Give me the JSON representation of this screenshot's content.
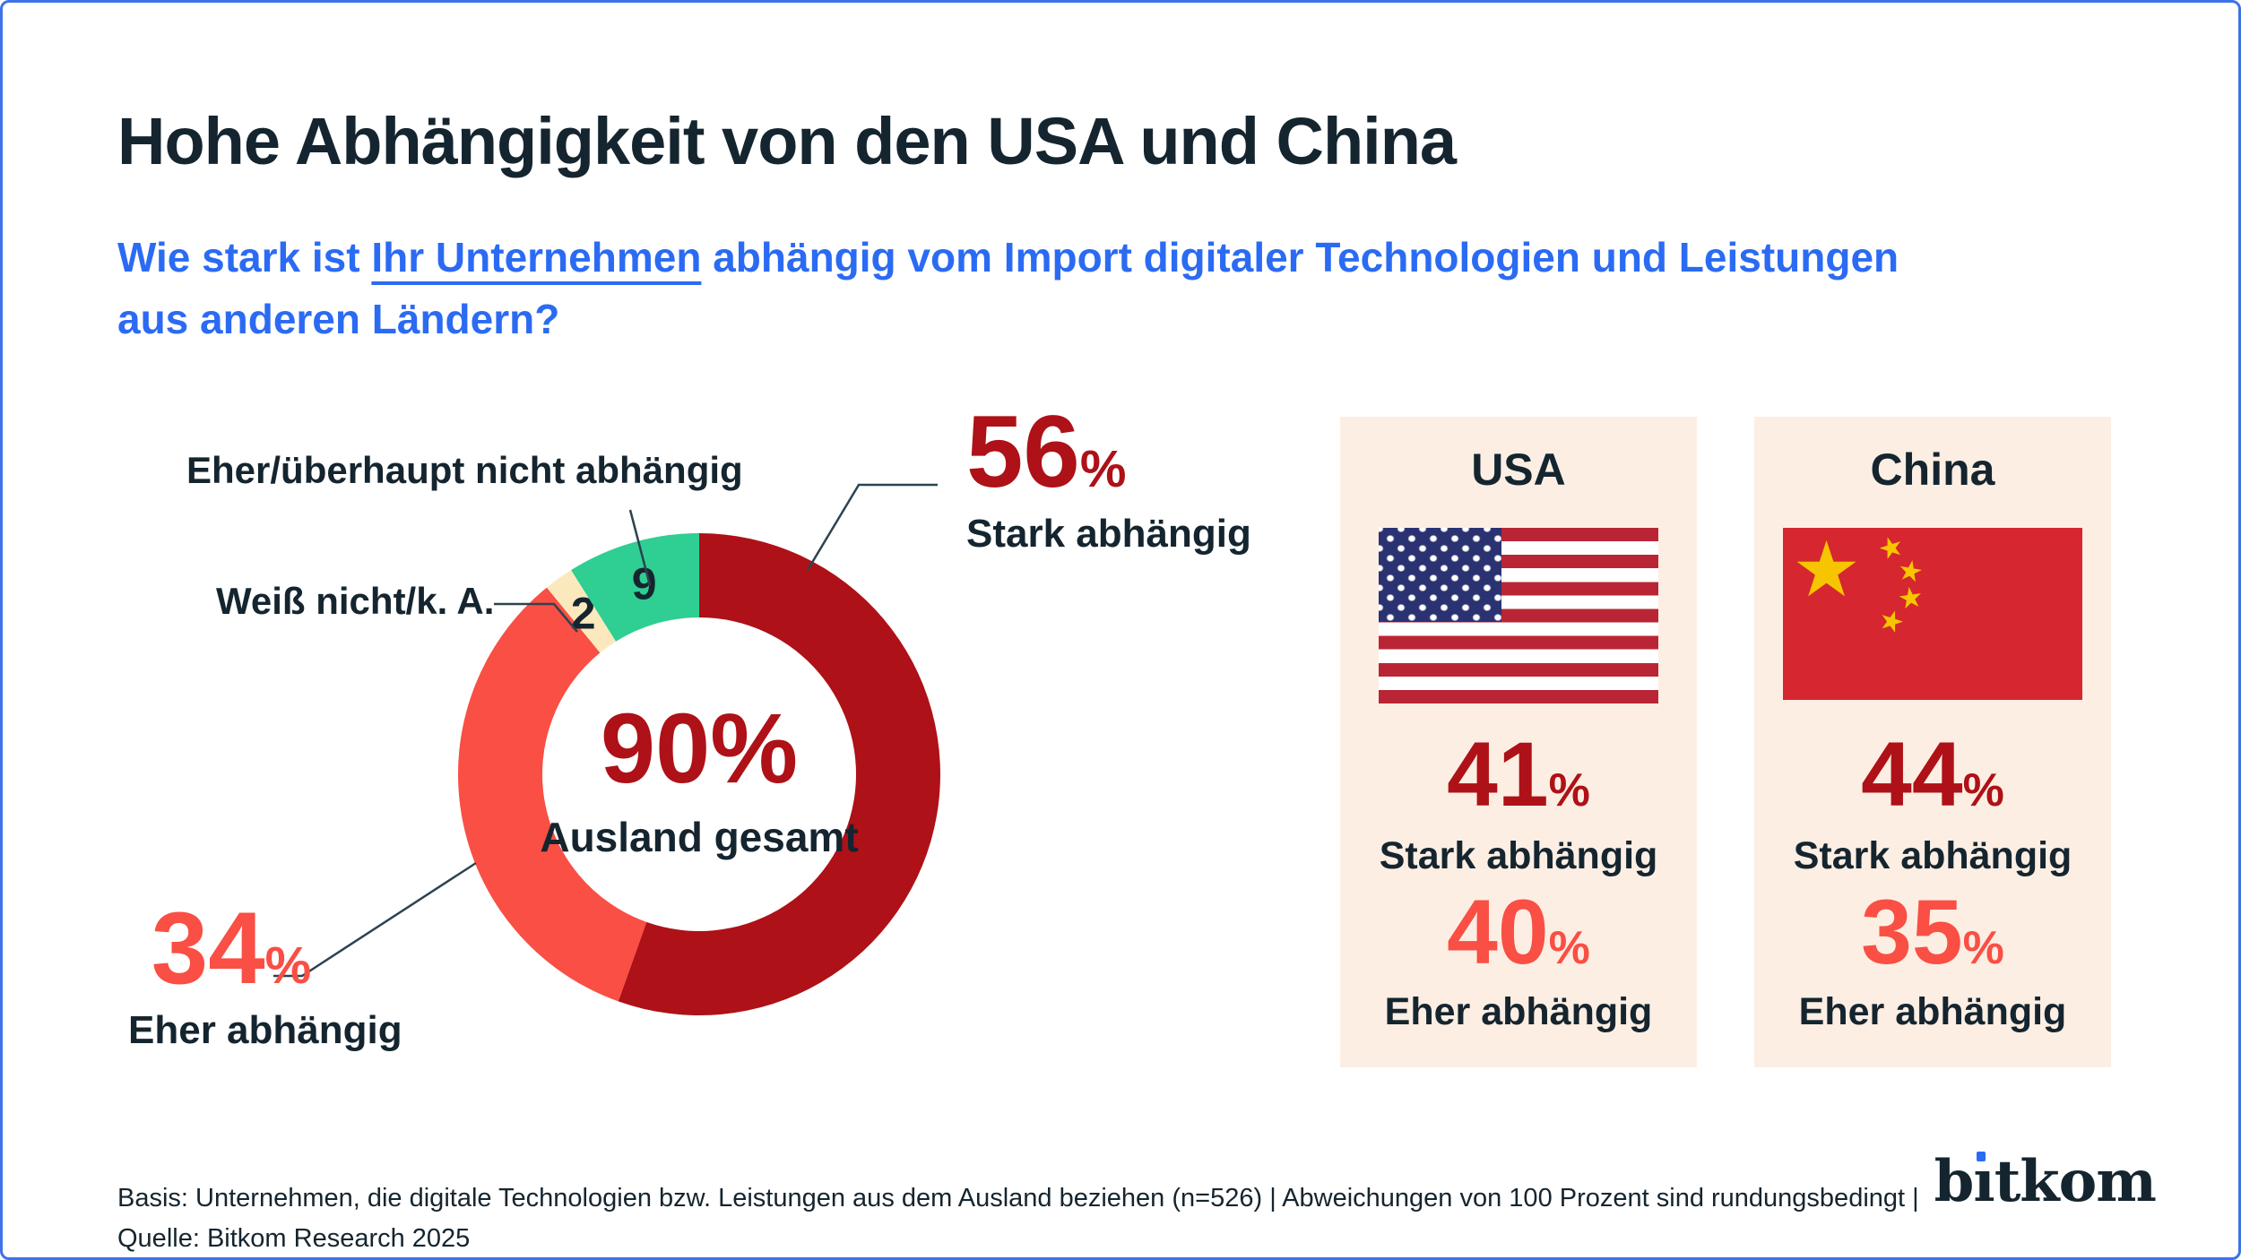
{
  "header": {
    "title": "Hohe Abhängigkeit von den USA und China",
    "subtitle": {
      "prefix": "Wie stark ist ",
      "underlined": "Ihr Unternehmen",
      "suffix": " abhängig vom Import digitaler Technologien und Leistungen",
      "line2": "aus anderen Ländern?"
    }
  },
  "chart_data": {
    "type": "pie",
    "title": "Abhängigkeit vom Import digitaler Technologien und Leistungen aus anderen Ländern",
    "legend_position": "callouts",
    "donut": {
      "center_value": "90%",
      "center_label": "Ausland gesamt",
      "start_angle_deg": 0,
      "direction": "clockwise",
      "segments": [
        {
          "label": "Stark abhängig",
          "value": 56,
          "unit": "%",
          "color": "#ae1117",
          "placement": "callout"
        },
        {
          "label": "Eher abhängig",
          "value": 34,
          "unit": "%",
          "color": "#f94f44",
          "placement": "callout"
        },
        {
          "label": "Weiß nicht/k. A.",
          "value": 2,
          "unit": "",
          "color": "#fbe9bd",
          "placement": "in-slice"
        },
        {
          "label": "Eher/überhaupt nicht abhängig",
          "value": 9,
          "unit": "",
          "color": "#2fce92",
          "placement": "in-slice"
        }
      ]
    },
    "country_breakdown": [
      {
        "name": "USA",
        "flag": "us-flag",
        "stark": {
          "value": 41,
          "unit": "%",
          "label": "Stark abhängig"
        },
        "eher": {
          "value": 40,
          "unit": "%",
          "label": "Eher abhängig"
        }
      },
      {
        "name": "China",
        "flag": "china-flag",
        "stark": {
          "value": 44,
          "unit": "%",
          "label": "Stark abhängig"
        },
        "eher": {
          "value": 35,
          "unit": "%",
          "label": "Eher abhängig"
        }
      }
    ]
  },
  "footer": {
    "line1": "Basis: Unternehmen, die digitale Technologien bzw. Leistungen aus dem Ausland beziehen (n=526) | Abweichungen von 100 Prozent sind rundungsbedingt |",
    "line2": "Quelle: Bitkom Research 2025",
    "logo": {
      "pre": "b",
      "i": "ı",
      "post": "tkom"
    }
  },
  "colors": {
    "title_text": "#15252f",
    "accent_blue": "#2b6bf3",
    "dark_red": "#ae1117",
    "salmon": "#f94f44",
    "green": "#2fce92",
    "cream": "#fbe9bd",
    "card_background": "#fdeee3",
    "frame_border": "#3d72e8",
    "us_canton": "#2b3272",
    "us_stripe_red": "#b92534",
    "china_red": "#d62630",
    "china_gold": "#f7c500"
  }
}
